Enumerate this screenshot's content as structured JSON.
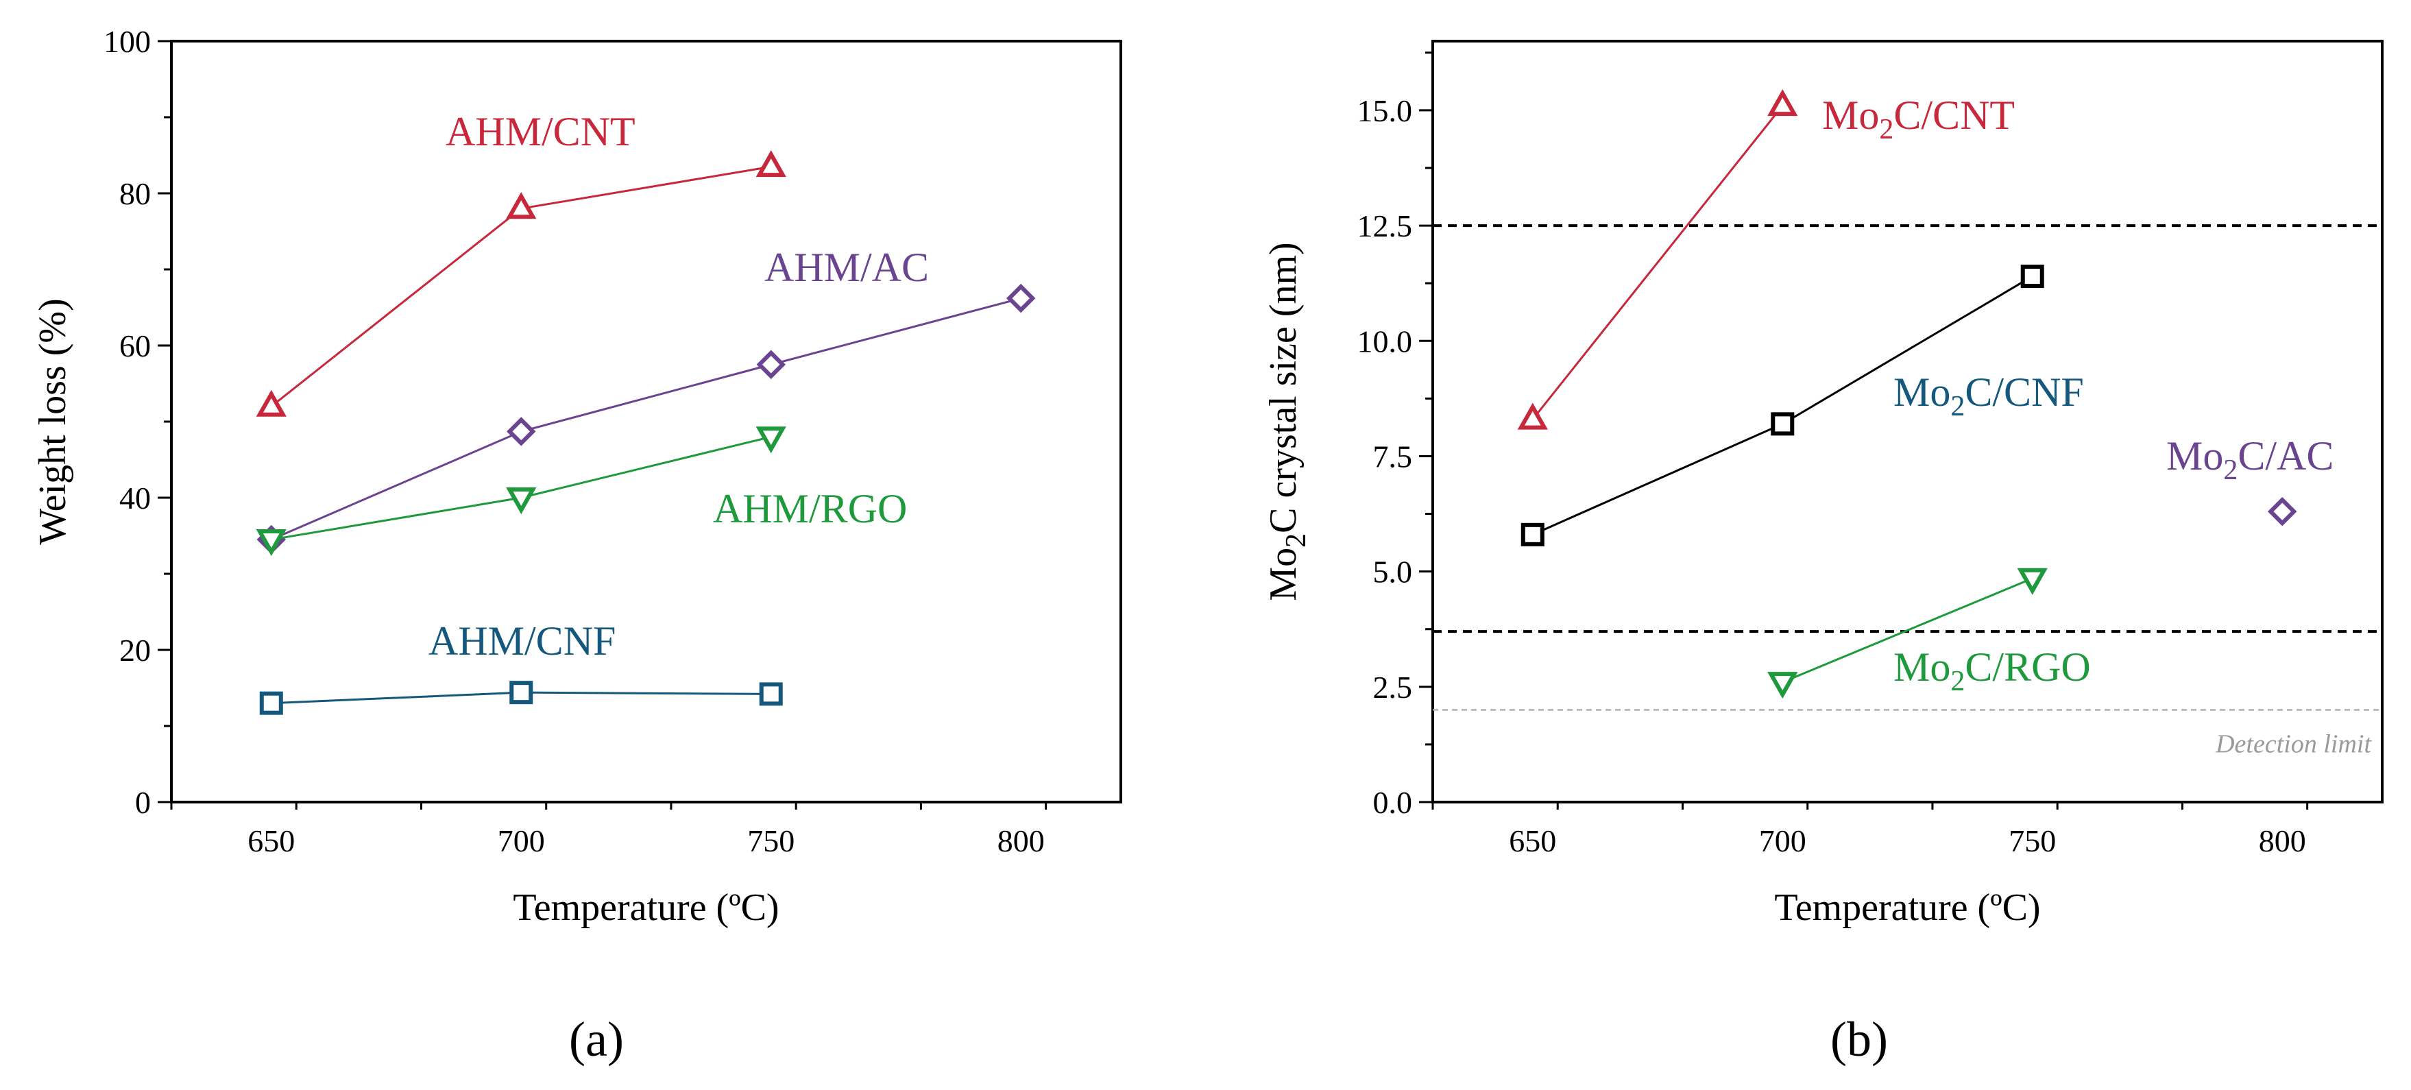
{
  "chart_data": [
    {
      "type": "line",
      "panel_label": "(a)",
      "xlabel": "Temperature (ºC)",
      "ylabel": "Weight loss (%)",
      "xlim": [
        630,
        820
      ],
      "ylim": [
        0,
        100
      ],
      "xticks": [
        650,
        700,
        750,
        800
      ],
      "yticks": [
        0,
        20,
        40,
        60,
        80,
        100
      ],
      "grid": false,
      "series": [
        {
          "name": "AHM/CNT",
          "color": "#c8283c",
          "marker": "triangle-up",
          "x": [
            650,
            700,
            750
          ],
          "y": [
            52,
            78,
            83.5
          ]
        },
        {
          "name": "AHM/AC",
          "color": "#6a4490",
          "marker": "diamond",
          "x": [
            650,
            700,
            750,
            800
          ],
          "y": [
            34.5,
            48.7,
            57.5,
            66.2
          ]
        },
        {
          "name": "AHM/RGO",
          "color": "#1e9a3c",
          "marker": "triangle-down",
          "x": [
            650,
            700,
            750
          ],
          "y": [
            34.5,
            40,
            48
          ]
        },
        {
          "name": "AHM/CNF",
          "color": "#14587e",
          "marker": "square",
          "x": [
            650,
            700,
            750
          ],
          "y": [
            13,
            14.4,
            14.2
          ]
        }
      ]
    },
    {
      "type": "scatter",
      "panel_label": "(b)",
      "xlabel": "Temperature (ºC)",
      "ylabel_parts": [
        "Mo",
        "2",
        "C crystal size (nm)"
      ],
      "xlim": [
        630,
        820
      ],
      "ylim": [
        0,
        16.5
      ],
      "xticks": [
        650,
        700,
        750,
        800
      ],
      "yticks": [
        "0.0",
        "2.5",
        "5.0",
        "7.5",
        "10.0",
        "12.5",
        "15.0"
      ],
      "grid": false,
      "reference_lines": [
        {
          "y": 12.5,
          "style": "dashed",
          "color": "#000000"
        },
        {
          "y": 3.7,
          "style": "dashed",
          "color": "#000000"
        },
        {
          "y": 2.0,
          "style": "dashed",
          "color": "#b0b0b0",
          "label": "Detection limit"
        }
      ],
      "series": [
        {
          "name": "Mo2C/CNT",
          "label_parts": [
            "Mo",
            "2",
            "C/CNT"
          ],
          "color": "#c8283c",
          "marker": "triangle-up",
          "x": [
            650,
            700
          ],
          "y": [
            8.3,
            15.1
          ]
        },
        {
          "name": "Mo2C/CNF",
          "label_parts": [
            "Mo",
            "2",
            "C/CNF"
          ],
          "color": "#000000",
          "marker": "square",
          "label_color": "#14587e",
          "x": [
            650,
            700,
            750
          ],
          "y": [
            5.8,
            8.2,
            11.4
          ]
        },
        {
          "name": "Mo2C/AC",
          "label_parts": [
            "Mo",
            "2",
            "C/AC"
          ],
          "color": "#6a4490",
          "marker": "diamond",
          "x": [
            800
          ],
          "y": [
            6.3
          ]
        },
        {
          "name": "Mo2C/RGO",
          "label_parts": [
            "Mo",
            "2",
            "C/RGO"
          ],
          "color": "#1e9a3c",
          "marker": "triangle-down",
          "x": [
            700,
            750
          ],
          "y": [
            2.6,
            4.85
          ]
        }
      ]
    }
  ]
}
